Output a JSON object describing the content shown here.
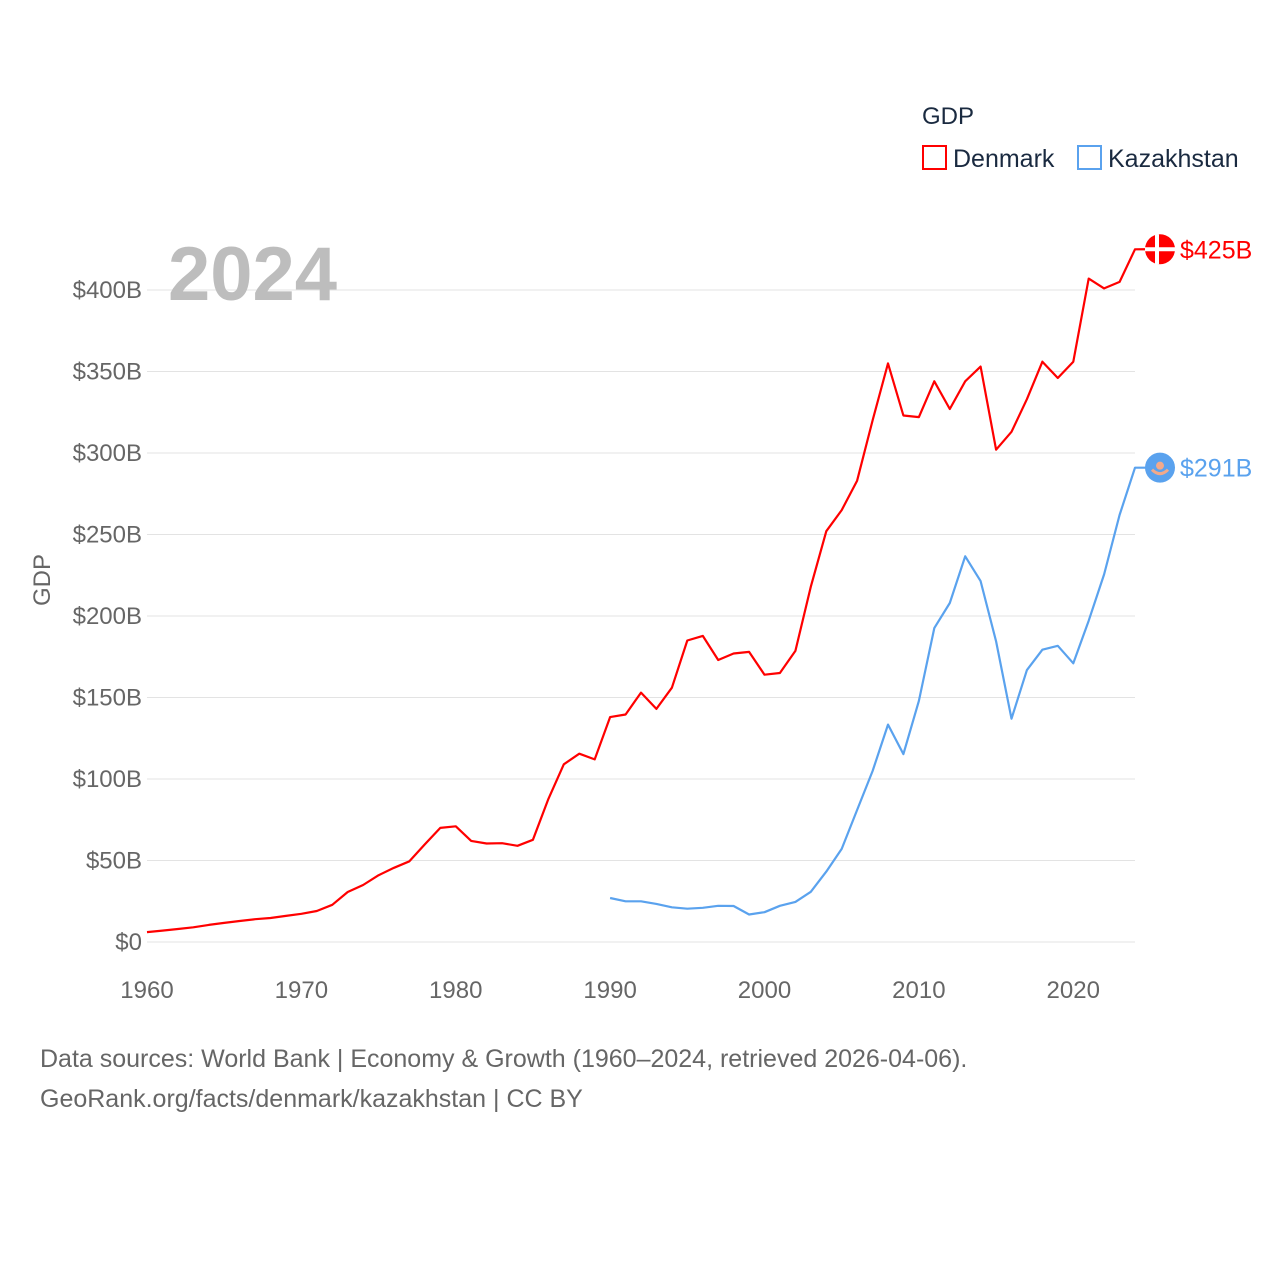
{
  "chart_data": {
    "type": "line",
    "title": "",
    "year_label": "2024",
    "ylabel": "GDP",
    "xlabel": "",
    "xlim": [
      1960,
      2024
    ],
    "ylim": [
      0,
      425
    ],
    "x_ticks": [
      1960,
      1970,
      1980,
      1990,
      2000,
      2010,
      2020
    ],
    "x_tick_labels": [
      "1960",
      "1970",
      "1980",
      "1990",
      "2000",
      "2010",
      "2020"
    ],
    "y_ticks": [
      0,
      50,
      100,
      150,
      200,
      250,
      300,
      350,
      400
    ],
    "y_tick_labels": [
      "$0",
      "$50B",
      "$100B",
      "$150B",
      "$200B",
      "$250B",
      "$300B",
      "$350B",
      "$400B"
    ],
    "grid": true,
    "legend": {
      "title": "GDP",
      "placement": "top-right"
    },
    "units": "billion USD",
    "series": [
      {
        "name": "Denmark",
        "color": "#ff0000",
        "end_label": "$425B",
        "flag": "denmark-flag",
        "start_year": 1960,
        "values": [
          6.1,
          7,
          8,
          9,
          10.5,
          11.7,
          12.9,
          14,
          14.7,
          16,
          17.3,
          19,
          22.8,
          30.7,
          35,
          41,
          45.5,
          49.5,
          60,
          70,
          71,
          62,
          60.4,
          60.6,
          59,
          62.7,
          87.8,
          109,
          115.5,
          112,
          138,
          139.6,
          153,
          143,
          156,
          185,
          187.8,
          173,
          177,
          178,
          164,
          165,
          178.6,
          218,
          252,
          265,
          283,
          320,
          355,
          323,
          322,
          344,
          327,
          344,
          353,
          302,
          313,
          333,
          356,
          346,
          356,
          407,
          401,
          405,
          425
        ]
      },
      {
        "name": "Kazakhstan",
        "color": "#5aa2ee",
        "end_label": "$291B",
        "flag": "kazakhstan-flag",
        "start_year": 1990,
        "values": [
          27,
          25,
          25,
          23.4,
          21.3,
          20.4,
          21,
          22.2,
          22.1,
          16.9,
          18.3,
          22.2,
          24.6,
          30.8,
          43.2,
          57.1,
          81,
          104.9,
          133.4,
          115.3,
          148,
          192.6,
          208,
          236.6,
          221.4,
          184.4,
          137,
          166.8,
          179.3,
          181.7,
          171,
          197.1,
          225.5,
          262,
          291
        ]
      }
    ]
  },
  "footer": {
    "line1": "Data sources: World Bank | Economy & Growth (1960–2024, retrieved 2026-04-06).",
    "line2": "GeoRank.org/facts/denmark/kazakhstan | CC BY"
  }
}
